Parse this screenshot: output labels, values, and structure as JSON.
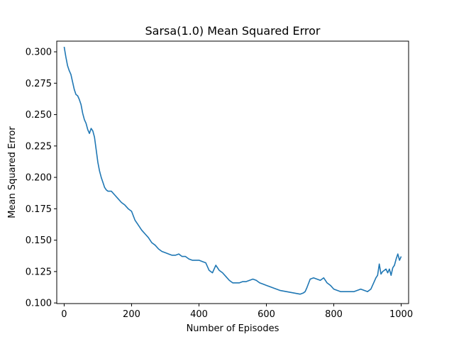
{
  "chart_data": {
    "type": "line",
    "title": "Sarsa(1.0) Mean Squared Error",
    "xlabel": "Number of Episodes",
    "ylabel": "Mean Squared Error",
    "xlim": [
      -22,
      1022
    ],
    "ylim": [
      0.0995,
      0.3085
    ],
    "xticks": [
      0,
      200,
      400,
      600,
      800,
      1000
    ],
    "xtick_labels": [
      "0",
      "200",
      "400",
      "600",
      "800",
      "1000"
    ],
    "yticks": [
      0.1,
      0.125,
      0.15,
      0.175,
      0.2,
      0.225,
      0.25,
      0.275,
      0.3
    ],
    "ytick_labels": [
      "0.100",
      "0.125",
      "0.150",
      "0.175",
      "0.200",
      "0.225",
      "0.250",
      "0.275",
      "0.300"
    ],
    "grid": false,
    "line_color": "#1f77b4",
    "series": [
      {
        "x": [
          0,
          5,
          10,
          15,
          20,
          25,
          30,
          35,
          40,
          45,
          50,
          55,
          60,
          65,
          70,
          75,
          80,
          85,
          90,
          95,
          100,
          105,
          110,
          115,
          120,
          125,
          130,
          140,
          150,
          160,
          170,
          180,
          190,
          200,
          210,
          220,
          230,
          240,
          250,
          260,
          270,
          280,
          290,
          300,
          310,
          320,
          330,
          340,
          350,
          360,
          370,
          380,
          390,
          400,
          410,
          420,
          430,
          440,
          450,
          460,
          470,
          480,
          490,
          500,
          510,
          520,
          530,
          540,
          550,
          560,
          570,
          580,
          590,
          600,
          620,
          640,
          660,
          680,
          700,
          710,
          715,
          720,
          730,
          740,
          750,
          760,
          770,
          780,
          790,
          800,
          810,
          820,
          830,
          840,
          850,
          860,
          870,
          880,
          890,
          900,
          910,
          920,
          925,
          930,
          935,
          940,
          945,
          950,
          955,
          960,
          965,
          970,
          975,
          980,
          985,
          990,
          995,
          1000
        ],
        "y": [
          0.304,
          0.296,
          0.289,
          0.285,
          0.282,
          0.276,
          0.27,
          0.266,
          0.265,
          0.262,
          0.258,
          0.251,
          0.246,
          0.243,
          0.238,
          0.235,
          0.239,
          0.237,
          0.232,
          0.222,
          0.212,
          0.205,
          0.2,
          0.196,
          0.192,
          0.19,
          0.189,
          0.189,
          0.186,
          0.183,
          0.18,
          0.178,
          0.175,
          0.173,
          0.166,
          0.162,
          0.158,
          0.155,
          0.152,
          0.148,
          0.146,
          0.143,
          0.141,
          0.14,
          0.139,
          0.138,
          0.138,
          0.139,
          0.137,
          0.137,
          0.135,
          0.134,
          0.134,
          0.134,
          0.133,
          0.132,
          0.126,
          0.124,
          0.13,
          0.126,
          0.124,
          0.121,
          0.118,
          0.116,
          0.116,
          0.116,
          0.117,
          0.117,
          0.118,
          0.119,
          0.118,
          0.116,
          0.115,
          0.114,
          0.112,
          0.11,
          0.109,
          0.108,
          0.107,
          0.108,
          0.109,
          0.112,
          0.119,
          0.12,
          0.119,
          0.118,
          0.12,
          0.116,
          0.114,
          0.111,
          0.11,
          0.109,
          0.109,
          0.109,
          0.109,
          0.109,
          0.11,
          0.111,
          0.11,
          0.109,
          0.111,
          0.117,
          0.12,
          0.122,
          0.131,
          0.123,
          0.125,
          0.126,
          0.127,
          0.124,
          0.127,
          0.122,
          0.128,
          0.13,
          0.135,
          0.139,
          0.134,
          0.137
        ]
      }
    ]
  }
}
